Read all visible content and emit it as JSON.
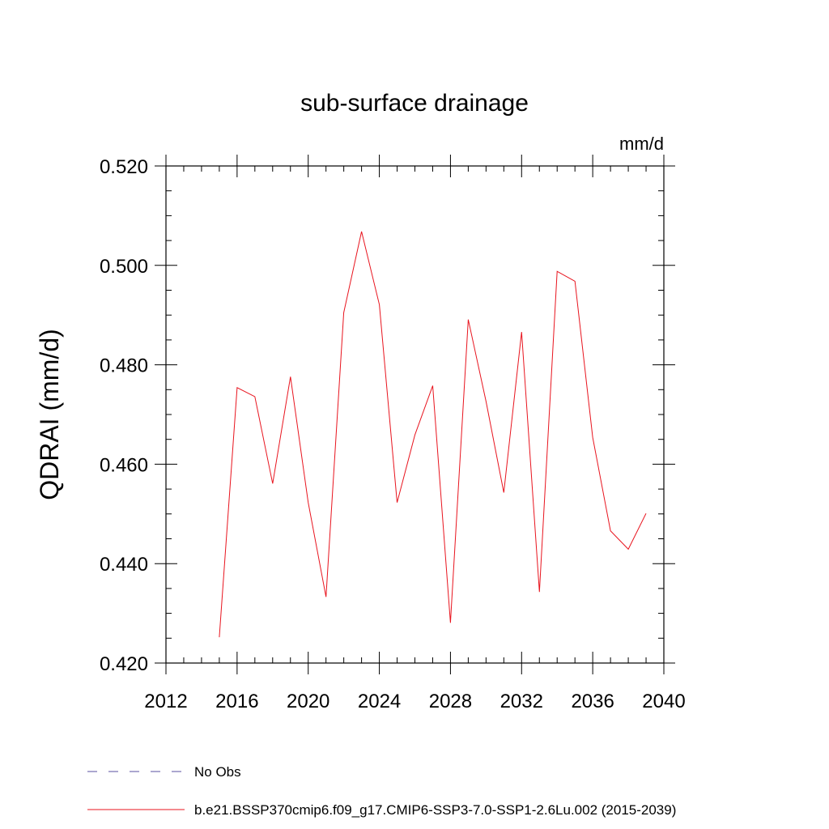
{
  "chart_data": {
    "type": "line",
    "title": "sub-surface drainage",
    "units_label": "mm/d",
    "ylabel": "QDRAI  (mm/d)",
    "xlabel": "",
    "xlim": [
      2012,
      2040
    ],
    "ylim": [
      0.42,
      0.52
    ],
    "x_ticks": [
      2012,
      2016,
      2020,
      2024,
      2028,
      2032,
      2036,
      2040
    ],
    "y_ticks": [
      0.42,
      0.44,
      0.46,
      0.48,
      0.5,
      0.52
    ],
    "x_tick_labels": [
      "2012",
      "2016",
      "2020",
      "2024",
      "2028",
      "2032",
      "2036",
      "2040"
    ],
    "y_tick_labels": [
      "0.420",
      "0.440",
      "0.460",
      "0.480",
      "0.500",
      "0.520"
    ],
    "grid": false,
    "legend_position": "bottom",
    "series": [
      {
        "name": "b.e21.BSSP370cmip6.f09_g17.CMIP6-SSP3-7.0-SSP1-2.6Lu.002 (2015-2039)",
        "color": "#e8141e",
        "x": [
          2015,
          2016,
          2017,
          2018,
          2019,
          2020,
          2021,
          2022,
          2023,
          2024,
          2025,
          2026,
          2027,
          2028,
          2029,
          2030,
          2031,
          2032,
          2033,
          2034,
          2035,
          2036,
          2037,
          2038,
          2039
        ],
        "values": [
          0.4252,
          0.4754,
          0.4736,
          0.4561,
          0.4776,
          0.4523,
          0.4333,
          0.4905,
          0.5068,
          0.4921,
          0.4523,
          0.4659,
          0.4758,
          0.4281,
          0.4891,
          0.4726,
          0.4543,
          0.4866,
          0.4343,
          0.4988,
          0.4968,
          0.4654,
          0.4466,
          0.4429,
          0.4501
        ]
      }
    ],
    "legend": [
      {
        "label": "No Obs",
        "color": "#5a4fa0",
        "style": "dashed"
      },
      {
        "label": "b.e21.BSSP370cmip6.f09_g17.CMIP6-SSP3-7.0-SSP1-2.6Lu.002 (2015-2039)",
        "color": "#e8141e",
        "style": "solid"
      }
    ]
  }
}
